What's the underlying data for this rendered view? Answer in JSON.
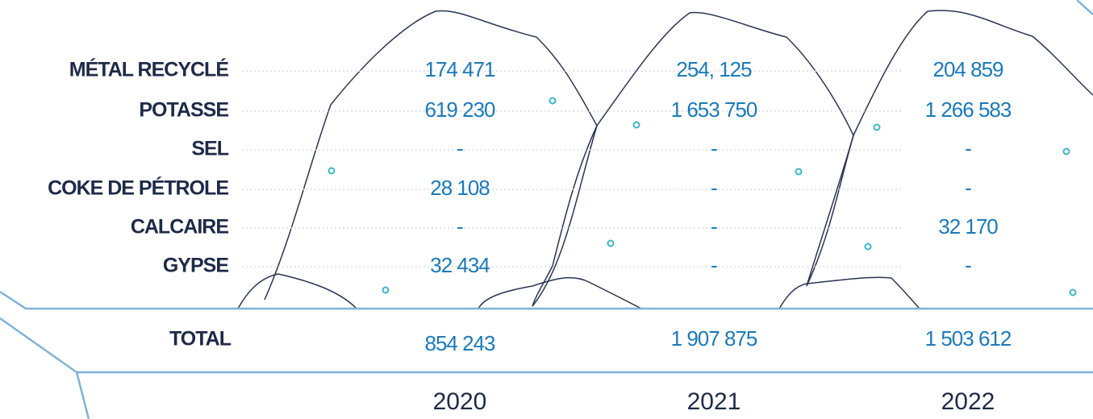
{
  "table": {
    "columns": [
      "2020",
      "2021",
      "2022"
    ],
    "rows": [
      {
        "label": "MÉTAL RECYCLÉ",
        "values": [
          "174 471",
          "254, 125",
          "204 859"
        ]
      },
      {
        "label": "POTASSE",
        "values": [
          "619 230",
          "1 653 750",
          "1 266 583"
        ]
      },
      {
        "label": "SEL",
        "values": [
          "-",
          "-",
          "-"
        ]
      },
      {
        "label": "COKE DE PÉTROLE",
        "values": [
          "28 108",
          "-",
          "-"
        ]
      },
      {
        "label": "CALCAIRE",
        "values": [
          "-",
          "-",
          "32 170"
        ]
      },
      {
        "label": "GYPSE",
        "values": [
          "32 434",
          "-",
          "-"
        ]
      }
    ],
    "total": {
      "label": "TOTAL",
      "values": [
        "854 243",
        "1 907 875",
        "1 503 612"
      ]
    }
  }
}
